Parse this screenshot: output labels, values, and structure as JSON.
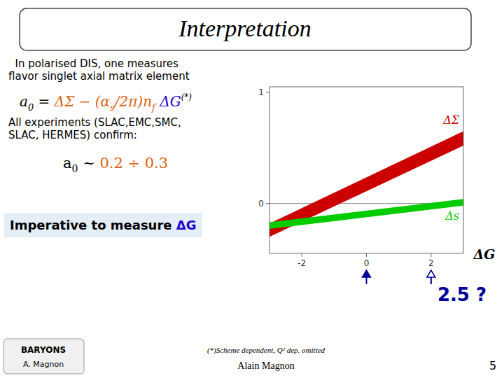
{
  "chart_data": {
    "type": "area",
    "title": "Interpretation",
    "x": [
      -3.0,
      3.0
    ],
    "series": [
      {
        "name": "ΔΣ",
        "color": "#cc0000",
        "low": [
          -0.3,
          0.52
        ],
        "high": [
          -0.18,
          0.65
        ]
      },
      {
        "name": "Δs",
        "color": "#00cc00",
        "low": [
          -0.23,
          -0.02
        ],
        "high": [
          -0.17,
          0.04
        ]
      }
    ],
    "xlim": [
      -3.0,
      3.0
    ],
    "ylim": [
      -0.45,
      1.05
    ],
    "xticks": [
      -2,
      0,
      2
    ],
    "yticks": [
      0,
      1
    ],
    "xlabel": "ΔG",
    "grid": false,
    "reference_lines": [
      0
    ],
    "pointers": [
      {
        "x": 0,
        "marker": "filled",
        "color": "#000099"
      },
      {
        "x": 2,
        "marker": "hollow",
        "color": "#000099"
      }
    ],
    "annotations": [
      {
        "text": "  In polarised DIS, one measures"
      },
      {
        "text": "flavor singlet axial matrix element"
      },
      {
        "parts": [
          {
            "text": "a",
            "sub": "0"
          },
          {
            "text": " = "
          },
          {
            "text": "ΔΣ",
            "color": "#e06010"
          },
          {
            "text": " − (α",
            "sub": "s",
            "color": "#e06010"
          },
          {
            "text": "/2π)n",
            "sub": "f",
            "color": "#e06010"
          },
          {
            "text": " ΔG",
            "color": "#2200cc"
          },
          {
            "sup": "(*)"
          }
        ]
      },
      {
        "text": "All experiments (SLAC,EMC,SMC,"
      },
      {
        "text": "SLAC, HERMES) confirm:"
      },
      {
        "parts": [
          {
            "text": "a",
            "sub": "0"
          },
          {
            "text": " ~ "
          },
          {
            "text": "0.2 ÷ 0.3",
            "color": "#e06010"
          }
        ]
      },
      {
        "parts": [
          {
            "text": "Imperative to measure "
          },
          {
            "text": "ΔG",
            "color": "#2200cc"
          }
        ]
      },
      {
        "text": "2.5 ?",
        "color": "#000099"
      },
      {
        "text": "BARYONS"
      },
      {
        "text": "A. Magnon"
      },
      {
        "text": "(*)Scheme dependent, Q² dep. omitted"
      },
      {
        "text": "Alain Magnon"
      },
      {
        "text": "5"
      }
    ]
  }
}
